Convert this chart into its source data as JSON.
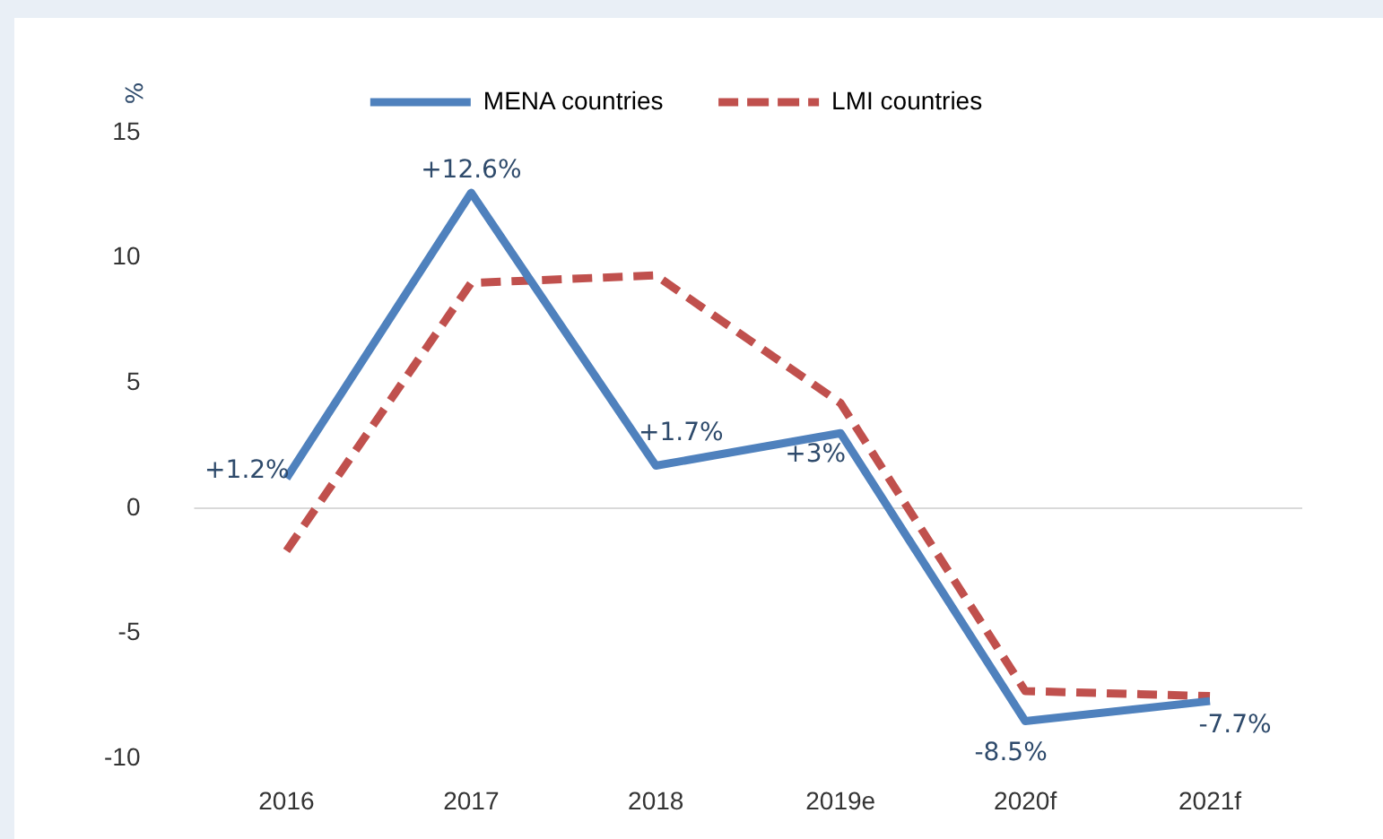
{
  "chart_data": {
    "type": "line",
    "ylabel": "%",
    "categories": [
      "2016",
      "2017",
      "2018",
      "2019e",
      "2020f",
      "2021f"
    ],
    "series": [
      {
        "name": "MENA countries",
        "color": "#4f81bd",
        "values": [
          1.2,
          12.6,
          1.7,
          3,
          -8.5,
          -7.7
        ],
        "value_labels": [
          "+1.2%",
          "+12.6%",
          "+1.7%",
          "+3%",
          "-8.5%",
          "-7.7%"
        ],
        "line_style": "solid"
      },
      {
        "name": "LMI countries",
        "color": "#c0504d",
        "values": [
          -1.7,
          9.0,
          9.3,
          4.2,
          -7.3,
          -7.5
        ],
        "line_style": "dashed"
      }
    ],
    "ylim": [
      -10,
      15
    ],
    "yticks": [
      -10,
      -5,
      0,
      5,
      10,
      15
    ],
    "grid": false,
    "ref_lines": [
      {
        "axis": "y",
        "value": 0,
        "color": "#d9d9d9"
      }
    ],
    "legend": "top",
    "marker": "none"
  }
}
